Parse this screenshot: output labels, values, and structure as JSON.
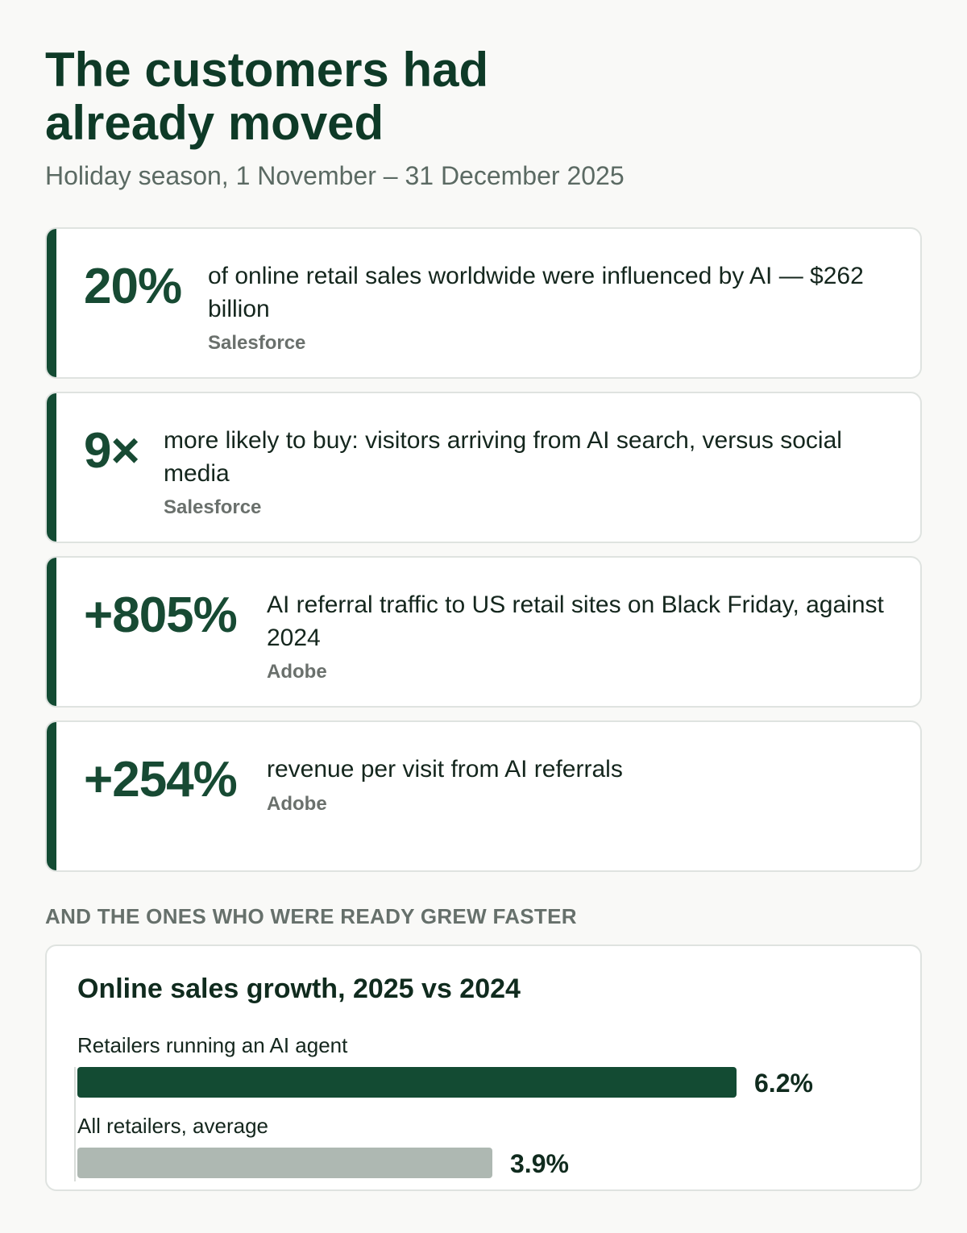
{
  "header": {
    "title": "The customers had\nalready moved",
    "subtitle": "Holiday season, 1 November – 31 December 2025"
  },
  "stats": [
    {
      "figure": "20%",
      "text": "of online retail sales worldwide were influenced by AI — $262 billion",
      "source": "Salesforce"
    },
    {
      "figure": "9×",
      "text": "more likely to buy: visitors arriving from AI search, versus social media",
      "source": "Salesforce"
    },
    {
      "figure": "+805%",
      "text": "AI referral traffic to US retail sites on Black Friday, against 2024",
      "source": "Adobe"
    },
    {
      "figure": "+254%",
      "text": "revenue per visit from AI referrals",
      "source": "Adobe"
    }
  ],
  "section_label": "AND THE ONES WHO WERE READY GREW FASTER",
  "colors": {
    "accent": "#134b33",
    "bar_primary": "#134b33",
    "bar_secondary": "#aeb8b2"
  },
  "chart_data": {
    "type": "bar",
    "orientation": "horizontal",
    "title": "Online sales growth, 2025 vs 2024",
    "categories": [
      "Retailers running an AI agent",
      "All retailers, average"
    ],
    "values": [
      6.2,
      3.9
    ],
    "value_labels": [
      "6.2%",
      "3.9%"
    ],
    "unit": "%",
    "xlim": [
      0,
      6.2
    ],
    "grid": false,
    "legend": "none"
  }
}
